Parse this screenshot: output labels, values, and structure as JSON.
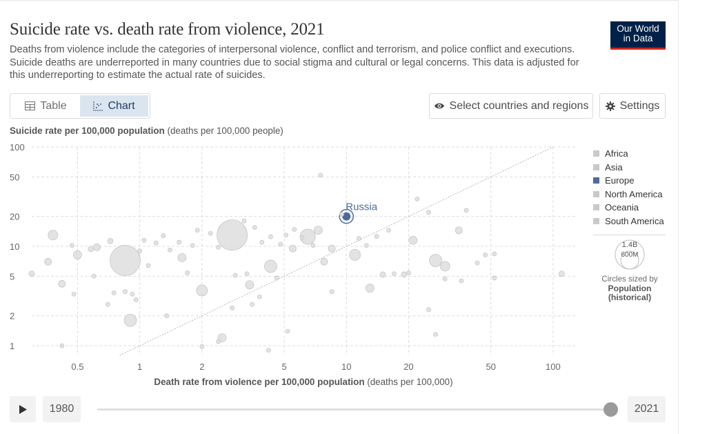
{
  "header": {
    "title": "Suicide rate vs. death rate from violence, 2021",
    "subtitle": "Deaths from violence include the categories of interpersonal violence, conflict and terrorism, and police conflict and executions. Suicide deaths are underreported in many countries due to social stigma and cultural or legal concerns. This data is adjusted for this underreporting to estimate the actual rate of suicides.",
    "logo_line1": "Our World",
    "logo_line2": "in Data"
  },
  "controls": {
    "tab_table": "Table",
    "tab_chart": "Chart",
    "select_label": "Select countries and regions",
    "settings_label": "Settings"
  },
  "timeline": {
    "start_year": "1980",
    "end_year": "2021"
  },
  "legend": {
    "items": [
      "Africa",
      "Asia",
      "Europe",
      "North America",
      "Oceania",
      "South America"
    ],
    "size_big": "1.4B",
    "size_small": "600M",
    "size_note": "Circles sized by",
    "size_var_line1": "Population",
    "size_var_line2": "(historical)"
  },
  "colors": {
    "europe": "#4c6a9c",
    "other": "#c9c9c9",
    "grid": "#dddddd"
  },
  "chart_data": {
    "type": "scatter",
    "title": "Suicide rate vs. death rate from violence, 2021",
    "ylabel_bold": "Suicide rate per 100,000 population",
    "ylabel_unit": "(deaths per 100,000 people)",
    "xlabel_bold": "Death rate from violence per 100,000 population",
    "xlabel_unit": "(deaths per 100,000)",
    "x_scale": "log",
    "y_scale": "log",
    "xlim": [
      0.3,
      130
    ],
    "ylim": [
      0.8,
      100
    ],
    "x_ticks": [
      0.5,
      1,
      2,
      5,
      10,
      20,
      50,
      100
    ],
    "x_tick_labels": [
      "0.5",
      "1",
      "2",
      "5",
      "10",
      "20",
      "50",
      "100"
    ],
    "y_ticks": [
      1,
      2,
      5,
      10,
      20,
      50,
      100
    ],
    "y_tick_labels": [
      "1",
      "2",
      "5",
      "10",
      "20",
      "50",
      "100"
    ],
    "reference_line": "y = x",
    "highlight_label": "Russia",
    "points": [
      {
        "x": 10,
        "y": 20,
        "r": 8,
        "region": "Europe",
        "label": "Russia"
      },
      {
        "x": 0.85,
        "y": 7.2,
        "r": 22,
        "region": "Asia"
      },
      {
        "x": 2.8,
        "y": 13,
        "r": 22,
        "region": "Asia"
      },
      {
        "x": 0.9,
        "y": 1.8,
        "r": 9,
        "region": "Asia"
      },
      {
        "x": 0.38,
        "y": 13,
        "r": 7,
        "region": "Asia"
      },
      {
        "x": 4.3,
        "y": 6.3,
        "r": 9,
        "region": "Asia"
      },
      {
        "x": 2,
        "y": 3.6,
        "r": 8,
        "region": "Asia"
      },
      {
        "x": 6.5,
        "y": 12.5,
        "r": 11,
        "region": "Asia"
      },
      {
        "x": 11,
        "y": 8.2,
        "r": 8,
        "region": "Africa"
      },
      {
        "x": 27,
        "y": 7.2,
        "r": 9,
        "region": "South America"
      },
      {
        "x": 30,
        "y": 6.3,
        "r": 7,
        "region": "North America"
      },
      {
        "x": 21,
        "y": 11.5,
        "r": 6,
        "region": "Africa"
      },
      {
        "x": 13,
        "y": 3.8,
        "r": 6,
        "region": "Africa"
      },
      {
        "x": 1.6,
        "y": 7.7,
        "r": 6,
        "region": "Asia"
      },
      {
        "x": 2.5,
        "y": 1.2,
        "r": 6,
        "region": "Asia"
      },
      {
        "x": 3.4,
        "y": 4.1,
        "r": 6,
        "region": "Asia"
      },
      {
        "x": 0.5,
        "y": 8.2,
        "r": 6,
        "region": "Africa"
      },
      {
        "x": 0.62,
        "y": 9.8,
        "r": 5,
        "region": "Asia"
      },
      {
        "x": 0.42,
        "y": 4.2,
        "r": 5,
        "region": "Europe"
      },
      {
        "x": 0.36,
        "y": 7.0,
        "r": 5,
        "region": "Europe"
      },
      {
        "x": 7.3,
        "y": 14.5,
        "r": 6,
        "region": "Africa"
      },
      {
        "x": 5.5,
        "y": 9.5,
        "r": 5,
        "region": "Africa"
      },
      {
        "x": 8.5,
        "y": 9.5,
        "r": 5,
        "region": "Africa"
      },
      {
        "x": 7.8,
        "y": 7.0,
        "r": 5,
        "region": "Africa"
      },
      {
        "x": 15,
        "y": 5.2,
        "r": 4,
        "region": "Africa"
      },
      {
        "x": 35,
        "y": 14.5,
        "r": 5,
        "region": "South America"
      },
      {
        "x": 19,
        "y": 5.2,
        "r": 4,
        "region": "Africa"
      },
      {
        "x": 0.3,
        "y": 5.3,
        "r": 4,
        "region": "Oceania"
      },
      {
        "x": 110,
        "y": 5.3,
        "r": 4,
        "region": "Africa"
      },
      {
        "x": 0.72,
        "y": 11.3,
        "r": 4,
        "region": "Asia"
      },
      {
        "x": 0.58,
        "y": 9.4,
        "r": 4,
        "region": "Asia"
      },
      {
        "x": 0.47,
        "y": 10.2,
        "r": 3,
        "region": "Africa"
      },
      {
        "x": 1.05,
        "y": 11.5,
        "r": 3,
        "region": "Asia"
      },
      {
        "x": 1.2,
        "y": 10.8,
        "r": 3,
        "region": "Asia"
      },
      {
        "x": 1.3,
        "y": 12.8,
        "r": 3,
        "region": "Asia"
      },
      {
        "x": 1.4,
        "y": 9.2,
        "r": 3,
        "region": "Asia"
      },
      {
        "x": 1.55,
        "y": 11,
        "r": 3,
        "region": "Asia"
      },
      {
        "x": 1.8,
        "y": 10.2,
        "r": 3,
        "region": "Asia"
      },
      {
        "x": 2.2,
        "y": 13.5,
        "r": 3,
        "region": "Asia"
      },
      {
        "x": 2.4,
        "y": 9.8,
        "r": 3,
        "region": "Asia"
      },
      {
        "x": 3.2,
        "y": 18,
        "r": 3,
        "region": "Europe"
      },
      {
        "x": 3.6,
        "y": 15.5,
        "r": 3,
        "region": "Europe"
      },
      {
        "x": 3.9,
        "y": 11,
        "r": 3,
        "region": "Europe"
      },
      {
        "x": 4.3,
        "y": 12.5,
        "r": 3,
        "region": "Europe"
      },
      {
        "x": 4.8,
        "y": 10.5,
        "r": 3,
        "region": "Europe"
      },
      {
        "x": 5.1,
        "y": 13,
        "r": 3,
        "region": "Europe"
      },
      {
        "x": 5.6,
        "y": 14.8,
        "r": 3,
        "region": "Europe"
      },
      {
        "x": 6.1,
        "y": 12.2,
        "r": 3,
        "region": "Europe"
      },
      {
        "x": 6.9,
        "y": 10.2,
        "r": 3,
        "region": "Europe"
      },
      {
        "x": 7.5,
        "y": 52,
        "r": 3,
        "region": "Africa"
      },
      {
        "x": 9.5,
        "y": 21,
        "r": 3,
        "region": "Africa"
      },
      {
        "x": 11.5,
        "y": 12,
        "r": 3,
        "region": "Africa"
      },
      {
        "x": 12.5,
        "y": 10.2,
        "r": 3,
        "region": "Africa"
      },
      {
        "x": 22,
        "y": 30,
        "r": 3,
        "region": "Africa"
      },
      {
        "x": 25,
        "y": 22,
        "r": 3,
        "region": "Africa"
      },
      {
        "x": 38,
        "y": 23,
        "r": 3,
        "region": "South America"
      },
      {
        "x": 47,
        "y": 8.2,
        "r": 3,
        "region": "North America"
      },
      {
        "x": 52,
        "y": 8.4,
        "r": 3,
        "region": "North America"
      },
      {
        "x": 52,
        "y": 4.8,
        "r": 3,
        "region": "North America"
      },
      {
        "x": 43,
        "y": 6.8,
        "r": 3,
        "region": "North America"
      },
      {
        "x": 20,
        "y": 5.4,
        "r": 3,
        "region": "Africa"
      },
      {
        "x": 30,
        "y": 4.7,
        "r": 3,
        "region": "South America"
      },
      {
        "x": 36,
        "y": 4.5,
        "r": 3,
        "region": "South America"
      },
      {
        "x": 17,
        "y": 5.3,
        "r": 3,
        "region": "Africa"
      },
      {
        "x": 14,
        "y": 12.6,
        "r": 3,
        "region": "Africa"
      },
      {
        "x": 16,
        "y": 14.5,
        "r": 3,
        "region": "Africa"
      },
      {
        "x": 4.6,
        "y": 4.8,
        "r": 3,
        "region": "Asia"
      },
      {
        "x": 3.3,
        "y": 5.3,
        "r": 3,
        "region": "Asia"
      },
      {
        "x": 2.9,
        "y": 5.1,
        "r": 3,
        "region": "Asia"
      },
      {
        "x": 3.8,
        "y": 3.1,
        "r": 3,
        "region": "Asia"
      },
      {
        "x": 3.5,
        "y": 2.6,
        "r": 3,
        "region": "Asia"
      },
      {
        "x": 2.8,
        "y": 2.4,
        "r": 3,
        "region": "Asia"
      },
      {
        "x": 0.85,
        "y": 3.5,
        "r": 3,
        "region": "Africa"
      },
      {
        "x": 0.92,
        "y": 3.3,
        "r": 3,
        "region": "Africa"
      },
      {
        "x": 0.7,
        "y": 2.6,
        "r": 3,
        "region": "Africa"
      },
      {
        "x": 0.75,
        "y": 3.4,
        "r": 3,
        "region": "Africa"
      },
      {
        "x": 0.96,
        "y": 2.9,
        "r": 3,
        "region": "Africa"
      },
      {
        "x": 0.48,
        "y": 3.3,
        "r": 3,
        "region": "Africa"
      },
      {
        "x": 1.35,
        "y": 2.0,
        "r": 3,
        "region": "Africa"
      },
      {
        "x": 0.42,
        "y": 1.0,
        "r": 3,
        "region": "Africa"
      },
      {
        "x": 2.4,
        "y": 1.1,
        "r": 3,
        "region": "Asia"
      },
      {
        "x": 2.0,
        "y": 0.98,
        "r": 3,
        "region": "Asia"
      },
      {
        "x": 4.2,
        "y": 0.9,
        "r": 3,
        "region": "Asia"
      },
      {
        "x": 5.2,
        "y": 1.4,
        "r": 3,
        "region": "Asia"
      },
      {
        "x": 8.5,
        "y": 3.5,
        "r": 3,
        "region": "Africa"
      },
      {
        "x": 27,
        "y": 1.3,
        "r": 3,
        "region": "South America"
      },
      {
        "x": 25,
        "y": 2.3,
        "r": 3,
        "region": "South America"
      },
      {
        "x": 1.9,
        "y": 14.5,
        "r": 3,
        "region": "Asia"
      },
      {
        "x": 0.6,
        "y": 5.0,
        "r": 3,
        "region": "Africa"
      },
      {
        "x": 1.0,
        "y": 9.0,
        "r": 3,
        "region": "Asia"
      },
      {
        "x": 1.7,
        "y": 5.4,
        "r": 3,
        "region": "Asia"
      },
      {
        "x": 1.1,
        "y": 6.4,
        "r": 3,
        "region": "Asia"
      }
    ]
  }
}
